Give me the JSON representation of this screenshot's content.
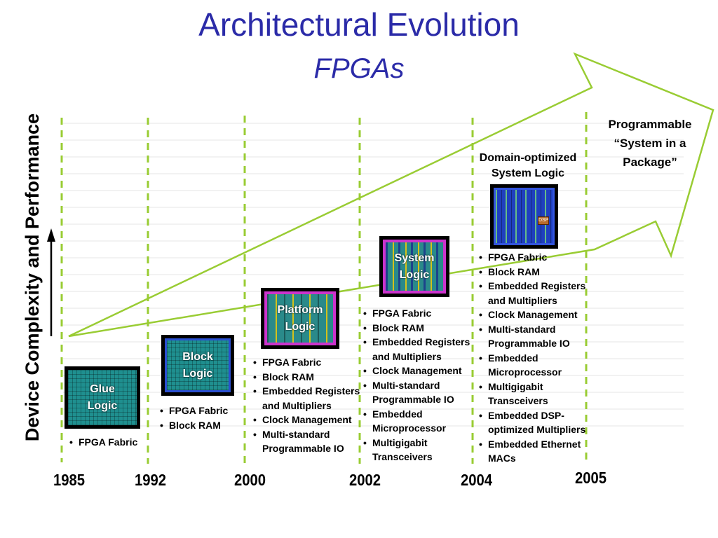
{
  "title": "Architectural Evolution",
  "subtitle": "FPGAs",
  "ylabel": "Device Complexity and Performance",
  "colors": {
    "title": "#2b2ba8",
    "arrow_green": "#99cc33",
    "dashed_green": "#99cc33",
    "chip_teal": "#1f8f8f",
    "chip_blue": "#1f3fbf",
    "chip_magenta": "#cc33cc"
  },
  "icons": [
    "up-arrow-icon",
    "big-outline-arrow-icon"
  ],
  "years": [
    "1985",
    "1992",
    "2000",
    "2002",
    "2004",
    "2005"
  ],
  "chips": {
    "glue": {
      "label_line1": "Glue",
      "label_line2": "Logic"
    },
    "block": {
      "label_line1": "Block",
      "label_line2": "Logic"
    },
    "platform": {
      "label_line1": "Platform",
      "label_line2": "Logic"
    },
    "system": {
      "label_line1": "System",
      "label_line2": "Logic"
    },
    "domain_chip_text": "DSP"
  },
  "features": {
    "f1985": [
      "FPGA Fabric"
    ],
    "f1992": [
      "FPGA Fabric",
      "Block RAM"
    ],
    "f2000": [
      "FPGA Fabric",
      "Block RAM",
      "Embedded Registers",
      "and Multipliers",
      "Clock Management",
      "Multi-standard",
      "Programmable IO"
    ],
    "f2002": [
      "FPGA Fabric",
      "Block RAM",
      "Embedded Registers",
      "and Multipliers",
      "Clock Management",
      "Multi-standard",
      "Programmable IO",
      "Embedded",
      "Microprocessor",
      "Multigigabit",
      "Transceivers"
    ],
    "f2004": [
      "FPGA Fabric",
      "Block RAM",
      "Embedded Registers",
      "and Multipliers",
      "Clock Management",
      "Multi-standard",
      "Programmable IO",
      "Embedded",
      "Microprocessor",
      "Multigigabit",
      "Transceivers",
      "Embedded DSP-",
      "optimized Multipliers",
      "Embedded Ethernet",
      "MACs"
    ]
  },
  "captions": {
    "domain_line1": "Domain-optimized",
    "domain_line2": "System Logic",
    "psip_line1": "Programmable",
    "psip_line2": "“System in a",
    "psip_line3": "Package”"
  }
}
